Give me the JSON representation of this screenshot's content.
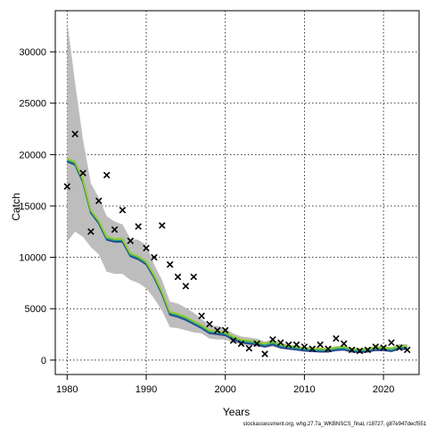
{
  "chart_data": {
    "type": "line",
    "xlabel": "Years",
    "ylabel": "Catch",
    "footnote": "stockassessment.org, whg.27.7a_WKBNSCS_final, r18727, g87e947decf551",
    "xlim": [
      1978.5,
      2024.5
    ],
    "ylim": [
      -1400,
      34000
    ],
    "xticks": [
      1980,
      1990,
      2000,
      2010,
      2020
    ],
    "yticks": [
      0,
      5000,
      10000,
      15000,
      20000,
      25000,
      30000
    ],
    "grid": true,
    "colors": {
      "band": "#bdbdbd",
      "estimate": "#2b3990",
      "fit_line_1": "#1fa187",
      "fit_line_2": "#9acd32",
      "observed": "#000000"
    },
    "years": [
      1980,
      1981,
      1982,
      1983,
      1984,
      1985,
      1986,
      1987,
      1988,
      1989,
      1990,
      1991,
      1992,
      1993,
      1994,
      1995,
      1996,
      1997,
      1998,
      1999,
      2000,
      2001,
      2002,
      2003,
      2004,
      2005,
      2006,
      2007,
      2008,
      2009,
      2010,
      2011,
      2012,
      2013,
      2014,
      2015,
      2016,
      2017,
      2018,
      2019,
      2020,
      2021,
      2022,
      2023
    ],
    "estimate": [
      19500,
      19200,
      17500,
      14500,
      13500,
      11900,
      11700,
      11700,
      10300,
      10000,
      9500,
      8200,
      6600,
      4600,
      4400,
      4100,
      3700,
      3300,
      2800,
      2700,
      2600,
      2200,
      1900,
      1800,
      1700,
      1500,
      1700,
      1400,
      1300,
      1200,
      1100,
      1050,
      1000,
      1000,
      1150,
      1200,
      1000,
      950,
      1000,
      1150,
      1150,
      1050,
      1300,
      1250
    ],
    "upper": [
      33000,
      27000,
      21500,
      17200,
      15800,
      14000,
      13500,
      13200,
      11800,
      11700,
      11200,
      9300,
      7800,
      5700,
      5500,
      5100,
      4600,
      4000,
      3400,
      3300,
      3100,
      2600,
      2300,
      2200,
      2100,
      1800,
      2000,
      1700,
      1500,
      1400,
      1300,
      1250,
      1200,
      1200,
      1350,
      1400,
      1200,
      1150,
      1200,
      1350,
      1350,
      1250,
      1550,
      1550
    ],
    "lower": [
      11500,
      12500,
      12000,
      11000,
      10300,
      8600,
      8400,
      8400,
      7800,
      7500,
      7000,
      6000,
      4800,
      3200,
      3100,
      2900,
      2700,
      2600,
      2100,
      2000,
      2000,
      1700,
      1500,
      1400,
      1300,
      1200,
      1300,
      1100,
      1000,
      950,
      850,
      800,
      750,
      750,
      900,
      950,
      800,
      750,
      800,
      900,
      900,
      850,
      1050,
      950
    ],
    "observed": [
      16900,
      22000,
      18200,
      12500,
      15500,
      18000,
      12700,
      14600,
      11600,
      13000,
      10900,
      10000,
      13100,
      9300,
      8100,
      7200,
      8100,
      4300,
      3500,
      2900,
      2900,
      1900,
      1600,
      1150,
      1600,
      600,
      2000,
      1700,
      1500,
      1500,
      1300,
      1100,
      1500,
      1100,
      2100,
      1600,
      1000,
      900,
      1000,
      1300,
      1200,
      1700,
      1200,
      1000
    ]
  }
}
